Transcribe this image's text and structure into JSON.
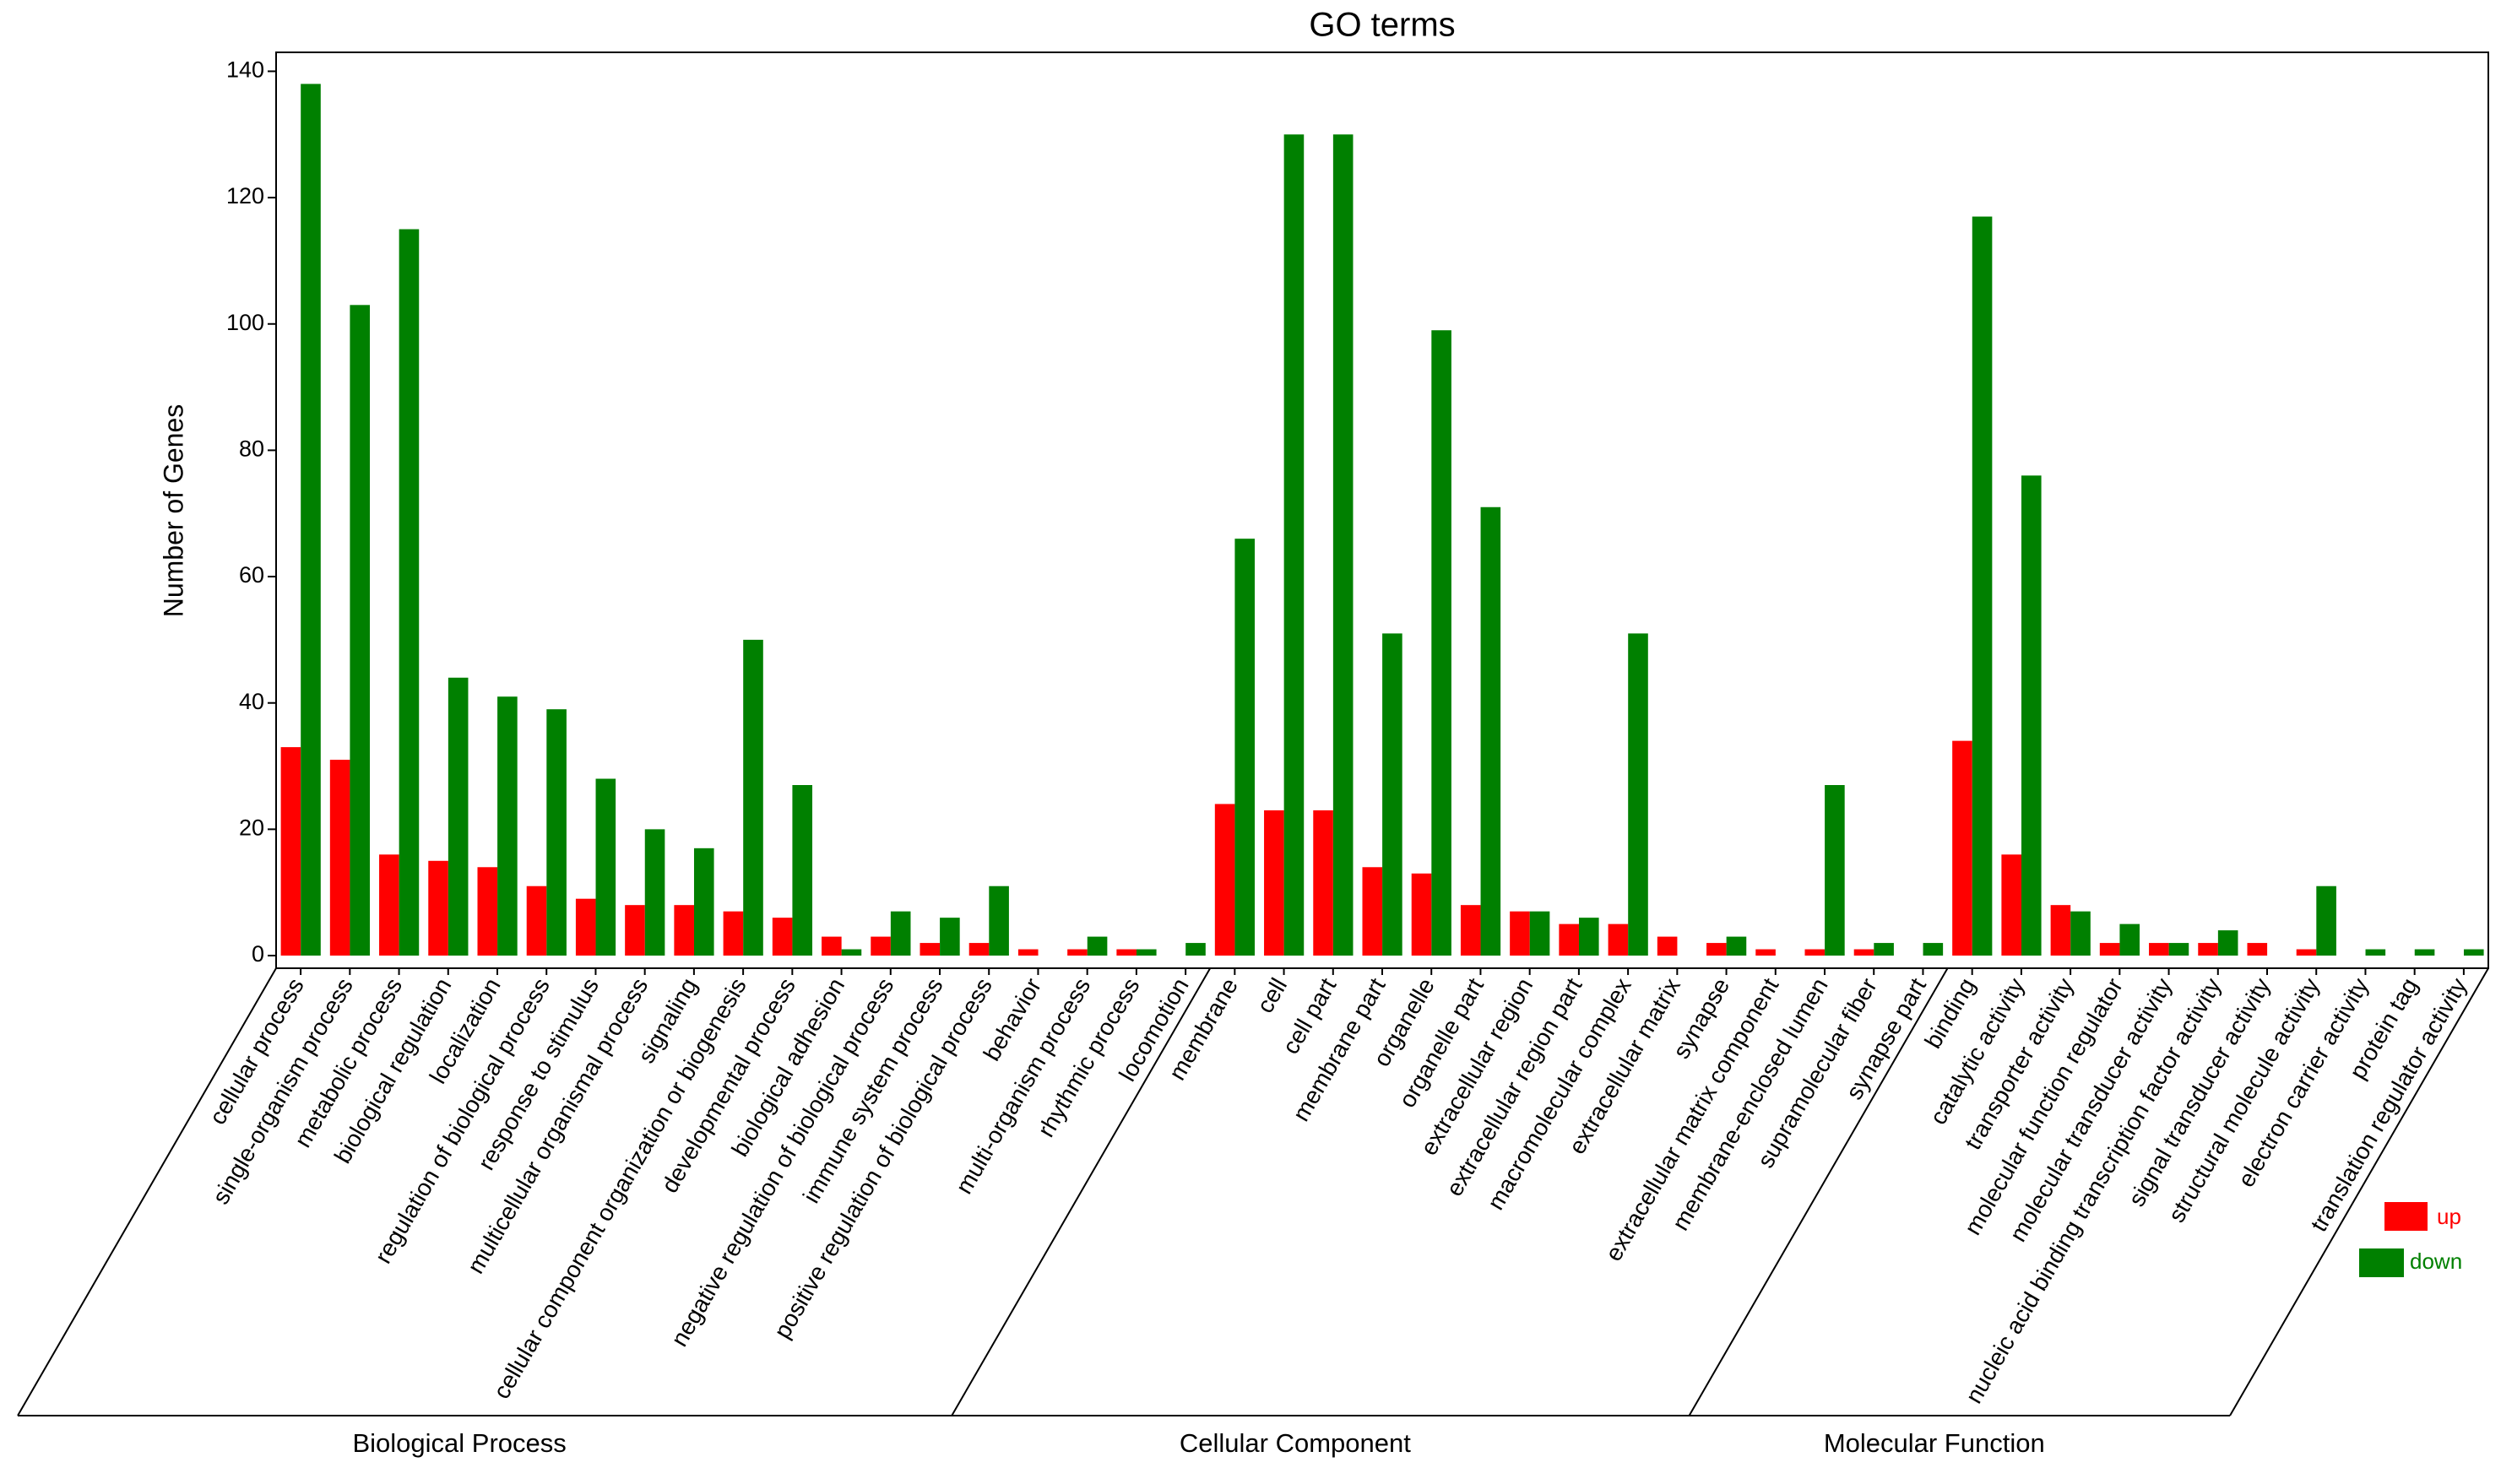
{
  "chart_data": {
    "type": "bar",
    "title": "GO terms",
    "xlabel": "",
    "ylabel": "Number of Genes",
    "ylim": [
      -2,
      143
    ],
    "yticks": [
      0,
      20,
      40,
      60,
      80,
      100,
      120,
      140
    ],
    "grid": false,
    "legend_position": "bottom-right",
    "groups": [
      {
        "name": "Biological Process",
        "categories": [
          "cellular process",
          "single-organism process",
          "metabolic process",
          "biological regulation",
          "localization",
          "regulation of biological process",
          "response to stimulus",
          "multicellular organismal process",
          "signaling",
          "cellular component organization or biogenesis",
          "developmental process",
          "biological adhesion",
          "negative regulation of biological process",
          "immune system process",
          "positive regulation of biological process",
          "behavior",
          "multi-organism process",
          "rhythmic process",
          "locomotion"
        ]
      },
      {
        "name": "Cellular Component",
        "categories": [
          "membrane",
          "cell",
          "cell part",
          "membrane part",
          "organelle",
          "organelle part",
          "extracellular region",
          "extracellular region part",
          "macromolecular complex",
          "extracellular matrix",
          "synapse",
          "extracellular matrix component",
          "membrane-enclosed lumen",
          "supramolecular fiber",
          "synapse part"
        ]
      },
      {
        "name": "Molecular Function",
        "categories": [
          "binding",
          "catalytic activity",
          "transporter activity",
          "molecular function regulator",
          "molecular transducer activity",
          "nucleic acid binding transcription factor activity",
          "signal transducer activity",
          "structural molecule activity",
          "electron carrier activity",
          "protein tag",
          "translation regulator activity"
        ]
      }
    ],
    "series": [
      {
        "name": "up",
        "color": "#ff0000",
        "values": [
          33,
          31,
          16,
          15,
          14,
          11,
          9,
          8,
          8,
          7,
          6,
          3,
          3,
          2,
          2,
          1,
          1,
          1,
          0,
          24,
          23,
          23,
          14,
          13,
          8,
          7,
          5,
          5,
          3,
          2,
          1,
          1,
          1,
          0,
          34,
          16,
          8,
          2,
          2,
          2,
          2,
          1,
          0,
          0,
          0
        ]
      },
      {
        "name": "down",
        "color": "#008000",
        "values": [
          138,
          103,
          115,
          44,
          41,
          39,
          28,
          20,
          17,
          50,
          27,
          1,
          7,
          6,
          11,
          0,
          3,
          1,
          2,
          66,
          130,
          130,
          51,
          99,
          71,
          7,
          6,
          51,
          0,
          3,
          0,
          27,
          2,
          2,
          117,
          76,
          7,
          5,
          2,
          4,
          0,
          11,
          1,
          1,
          1
        ]
      }
    ]
  }
}
